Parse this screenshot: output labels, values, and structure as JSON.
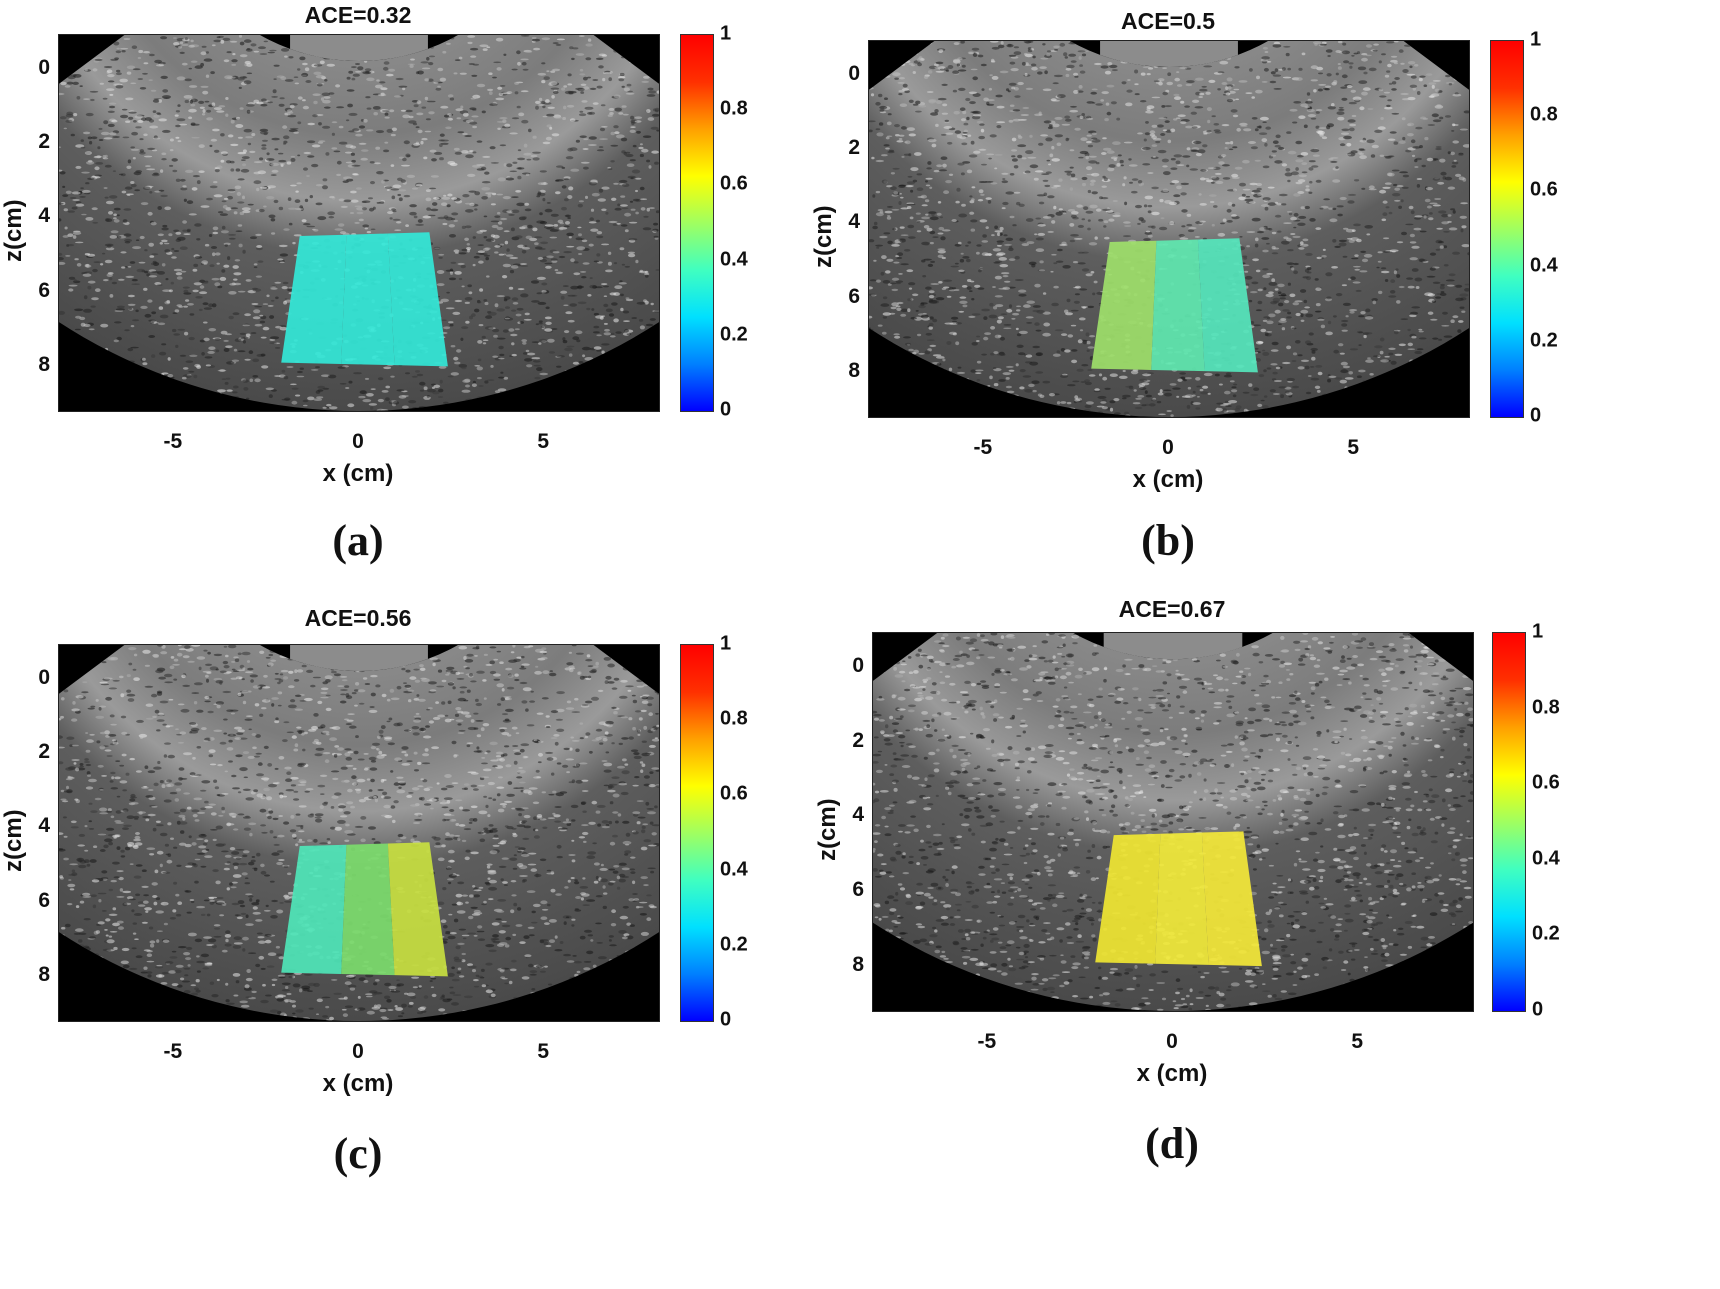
{
  "panels": [
    {
      "title": "ACE=0.32",
      "caption": "(a)",
      "xlabel": "x (cm)",
      "ylabel": "z(cm)",
      "xticks": [
        "-5",
        "0",
        "5"
      ],
      "yticks": [
        "0",
        "2",
        "4",
        "6",
        "8"
      ],
      "colorbar_ticks": [
        "0",
        "0.2",
        "0.4",
        "0.6",
        "0.8",
        "1"
      ],
      "roi_value": 0.32,
      "roi_colors": [
        "#33e8d8",
        "#33e8d8",
        "#33e8d8"
      ]
    },
    {
      "title": "ACE=0.5",
      "caption": "(b)",
      "xlabel": "x (cm)",
      "ylabel": "z(cm)",
      "xticks": [
        "-5",
        "0",
        "5"
      ],
      "yticks": [
        "0",
        "2",
        "4",
        "6",
        "8"
      ],
      "colorbar_ticks": [
        "0",
        "0.2",
        "0.4",
        "0.6",
        "0.8",
        "1"
      ],
      "roi_value": 0.5,
      "roi_colors": [
        "#9ee06a",
        "#5fe8b0",
        "#55e6bc"
      ]
    },
    {
      "title": "ACE=0.56",
      "caption": "(c)",
      "xlabel": "x (cm)",
      "ylabel": "z(cm)",
      "xticks": [
        "-5",
        "0",
        "5"
      ],
      "yticks": [
        "0",
        "2",
        "4",
        "6",
        "8"
      ],
      "colorbar_ticks": [
        "0",
        "0.2",
        "0.4",
        "0.6",
        "0.8",
        "1"
      ],
      "roi_value": 0.56,
      "roi_colors": [
        "#4fe6b8",
        "#7cdc6c",
        "#c8e040"
      ]
    },
    {
      "title": "ACE=0.67",
      "caption": "(d)",
      "xlabel": "x (cm)",
      "ylabel": "z(cm)",
      "xticks": [
        "-5",
        "0",
        "5"
      ],
      "yticks": [
        "0",
        "2",
        "4",
        "6",
        "8"
      ],
      "colorbar_ticks": [
        "0",
        "0.2",
        "0.4",
        "0.6",
        "0.8",
        "1"
      ],
      "roi_value": 0.67,
      "roi_colors": [
        "#f0e632",
        "#f2ea3a",
        "#f4e838"
      ]
    }
  ],
  "colormap": [
    "#0000ff",
    "#0080ff",
    "#00e0ff",
    "#40ffc0",
    "#a0ff60",
    "#ffff00",
    "#ffa000",
    "#ff3000",
    "#ff0000"
  ]
}
